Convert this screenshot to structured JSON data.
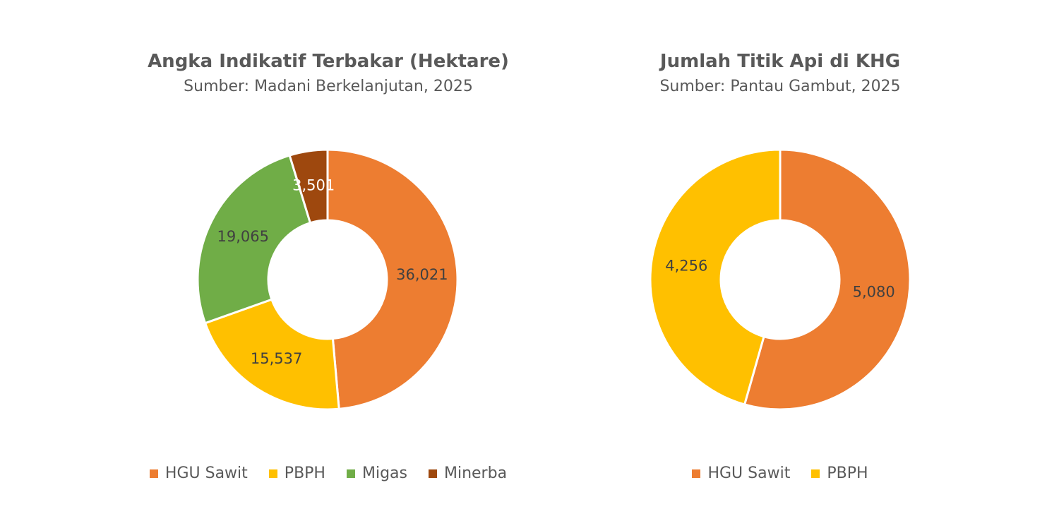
{
  "chart_data": [
    {
      "type": "pie",
      "variant": "donut",
      "title": "Angka Indikatif Terbakar (Hektare)",
      "subtitle": "Sumber: Madani Berkelanjutan, 2025",
      "categories": [
        "HGU Sawit",
        "PBPH",
        "Migas",
        "Minerba"
      ],
      "values": [
        36021,
        15537,
        19065,
        3501
      ],
      "labels": [
        "36,021",
        "15,537",
        "19,065",
        "3,501"
      ],
      "label_colors": [
        "#404040",
        "#404040",
        "#404040",
        "#ffffff"
      ],
      "colors": [
        "#ED7D31",
        "#FFC000",
        "#70AD47",
        "#9E480E"
      ],
      "legend_position": "bottom"
    },
    {
      "type": "pie",
      "variant": "donut",
      "title": "Jumlah Titik Api di KHG",
      "subtitle": "Sumber: Pantau Gambut, 2025",
      "categories": [
        "HGU Sawit",
        "PBPH"
      ],
      "values": [
        5080,
        4256
      ],
      "labels": [
        "5,080",
        "4,256"
      ],
      "label_colors": [
        "#404040",
        "#404040"
      ],
      "colors": [
        "#ED7D31",
        "#FFC000"
      ],
      "legend_position": "bottom"
    }
  ]
}
